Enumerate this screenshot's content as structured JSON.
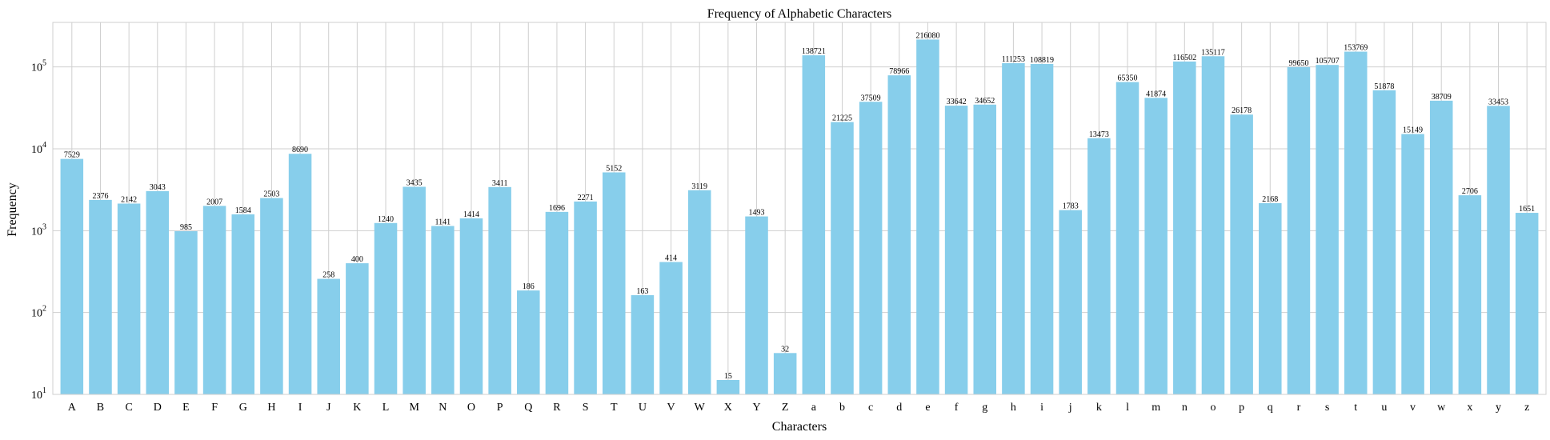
{
  "chart_data": {
    "type": "bar",
    "title": "Frequency of Alphabetic Characters",
    "xlabel": "Characters",
    "ylabel": "Frequency",
    "yscale": "log",
    "ylim": [
      10,
      350000
    ],
    "y_ticks": [
      {
        "value": 10,
        "base": "10",
        "exp": "1"
      },
      {
        "value": 100,
        "base": "10",
        "exp": "2"
      },
      {
        "value": 1000,
        "base": "10",
        "exp": "3"
      },
      {
        "value": 10000,
        "base": "10",
        "exp": "4"
      },
      {
        "value": 100000,
        "base": "10",
        "exp": "5"
      }
    ],
    "grid": true,
    "bar_color": "#87CEEB",
    "categories": [
      "A",
      "B",
      "C",
      "D",
      "E",
      "F",
      "G",
      "H",
      "I",
      "J",
      "K",
      "L",
      "M",
      "N",
      "O",
      "P",
      "Q",
      "R",
      "S",
      "T",
      "U",
      "V",
      "W",
      "X",
      "Y",
      "Z",
      "a",
      "b",
      "c",
      "d",
      "e",
      "f",
      "g",
      "h",
      "i",
      "j",
      "k",
      "l",
      "m",
      "n",
      "o",
      "p",
      "q",
      "r",
      "s",
      "t",
      "u",
      "v",
      "w",
      "x",
      "y",
      "z"
    ],
    "values": [
      7529,
      2376,
      2142,
      3043,
      985,
      2007,
      1584,
      2503,
      8690,
      258,
      400,
      1240,
      3435,
      1141,
      1414,
      3411,
      186,
      1696,
      2271,
      5152,
      163,
      414,
      3119,
      15,
      1493,
      32,
      138721,
      21225,
      37509,
      78966,
      216080,
      33642,
      34652,
      111253,
      108819,
      1783,
      13473,
      65350,
      41874,
      116502,
      135117,
      26178,
      2168,
      99650,
      105707,
      153769,
      51878,
      15149,
      38709,
      2706,
      33453,
      1651
    ]
  }
}
